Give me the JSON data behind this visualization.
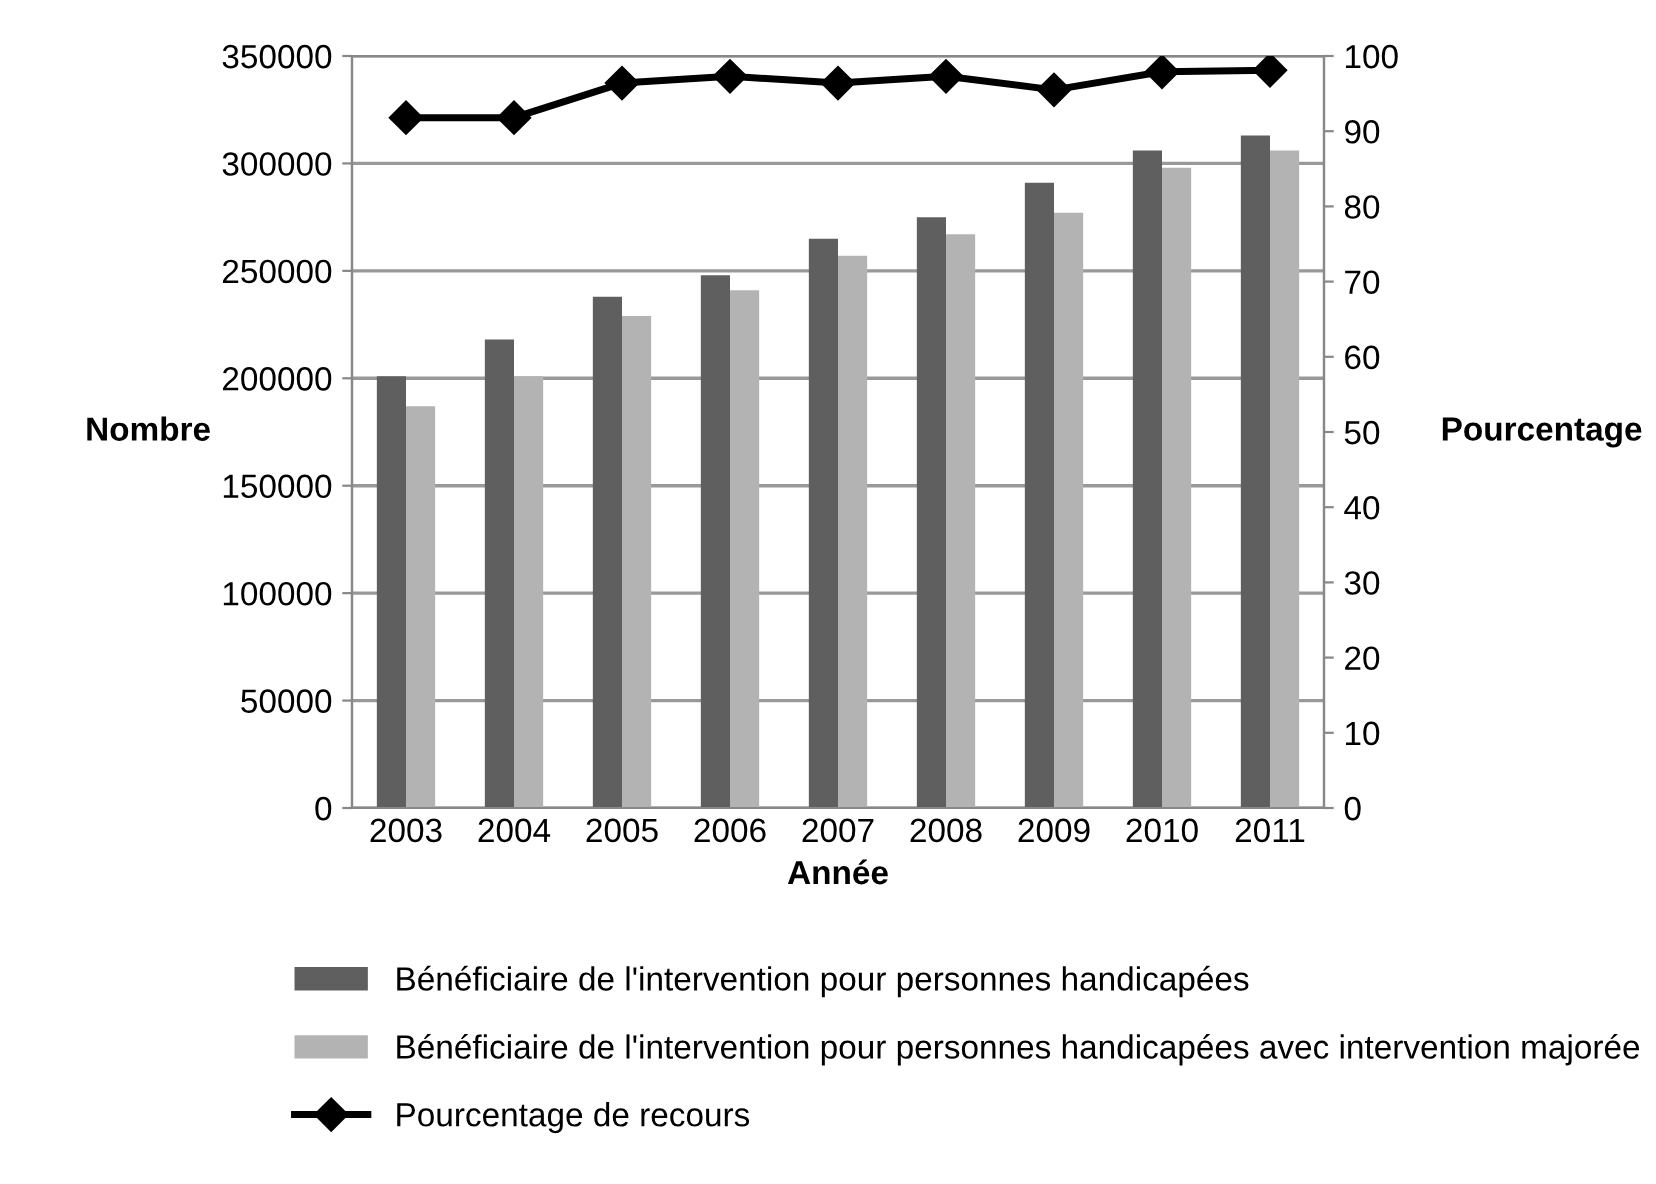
{
  "chart_data": {
    "type": "bar",
    "xlabel": "Année",
    "ylabel": "Nombre",
    "y2label": "Pourcentage",
    "categories": [
      "2003",
      "2004",
      "2005",
      "2006",
      "2007",
      "2008",
      "2009",
      "2010",
      "2011"
    ],
    "series": [
      {
        "name": "Bénéficiaire de l'intervention pour personnes handicapées",
        "color": "#5f5f5f",
        "values": [
          201000,
          218000,
          238000,
          248000,
          265000,
          275000,
          291000,
          306000,
          313000
        ]
      },
      {
        "name": "Bénéficiaire de l'intervention pour personnes handicapées avec intervention majorée",
        "color": "#b3b3b3",
        "values": [
          187000,
          201000,
          229000,
          241000,
          257000,
          267000,
          277000,
          298000,
          306000
        ]
      },
      {
        "name": "Pourcentage de recours",
        "type": "line",
        "axis": "y2",
        "color": "#000000",
        "marker": "diamond",
        "values": [
          91.8,
          91.8,
          96.4,
          97.3,
          96.4,
          97.3,
          95.5,
          97.9,
          98.1
        ]
      }
    ],
    "ylim": [
      0,
      350000
    ],
    "yticks": [
      0,
      50000,
      100000,
      150000,
      200000,
      250000,
      300000,
      350000
    ],
    "y2lim": [
      0,
      100
    ],
    "y2ticks": [
      0,
      10,
      20,
      30,
      40,
      50,
      60,
      70,
      80,
      90,
      100
    ],
    "grid": "y",
    "legend": "bottom"
  }
}
